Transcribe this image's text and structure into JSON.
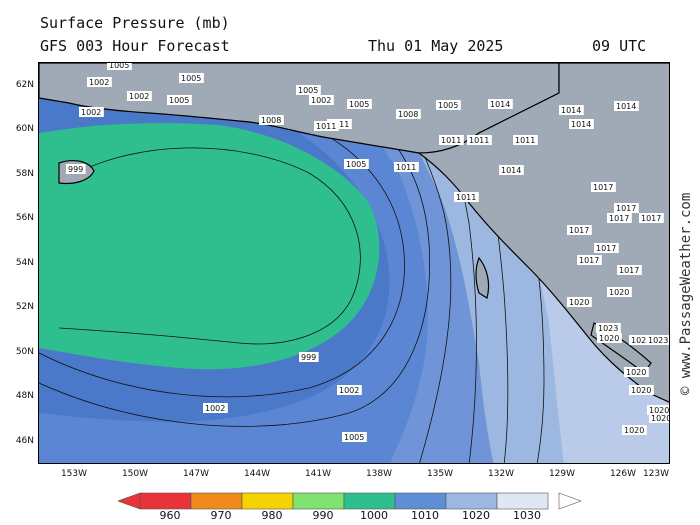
{
  "header": {
    "title": "Surface Pressure (mb)",
    "subtitle": "GFS 003 Hour Forecast",
    "date": "Thu 01 May 2025",
    "time": "09 UTC"
  },
  "credit": "© www.PassageWeather.com",
  "lat_labels": [
    "62N",
    "60N",
    "58N",
    "56N",
    "54N",
    "52N",
    "50N",
    "48N",
    "46N"
  ],
  "lon_labels": [
    "153W",
    "150W",
    "147W",
    "144W",
    "141W",
    "138W",
    "135W",
    "132W",
    "129W",
    "126W",
    "123W"
  ],
  "isobar_labels": [
    "1002",
    "1005",
    "1005",
    "1002",
    "1002",
    "1005",
    "1002",
    "1005",
    "1005",
    "1008",
    "1011",
    "1008",
    "1005",
    "1011",
    "1011",
    "1011",
    "1011",
    "1014",
    "1014",
    "1014",
    "1014",
    "999",
    "1005",
    "1011",
    "1011",
    "1014",
    "1017",
    "1017",
    "1017",
    "1017",
    "1017",
    "1017",
    "1017",
    "1017",
    "1020",
    "1020",
    "1023",
    "1020",
    "1023",
    "1023",
    "1020",
    "1020",
    "1020",
    "1020",
    "1020",
    "999",
    "1002",
    "1002",
    "1005"
  ],
  "legend": {
    "labels": [
      "960",
      "970",
      "980",
      "990",
      "1000",
      "1010",
      "1020",
      "1030"
    ],
    "colors": [
      "#e8333a",
      "#f08a1c",
      "#f5d300",
      "#7ee36f",
      "#2fbf8f",
      "#5e8fd6",
      "#9db8e0",
      "#dfe7f3"
    ]
  },
  "colors": {
    "band_995": "#4fc8b0",
    "band_1000": "#2fbf8f",
    "band_1005": "#5b86d4",
    "band_1010": "#6f95d8",
    "band_1015": "#9db8e0",
    "band_1020": "#b9cbe8",
    "band_1025": "#dfe7f3",
    "land": "#9aa7b4",
    "coast": "#000000"
  }
}
